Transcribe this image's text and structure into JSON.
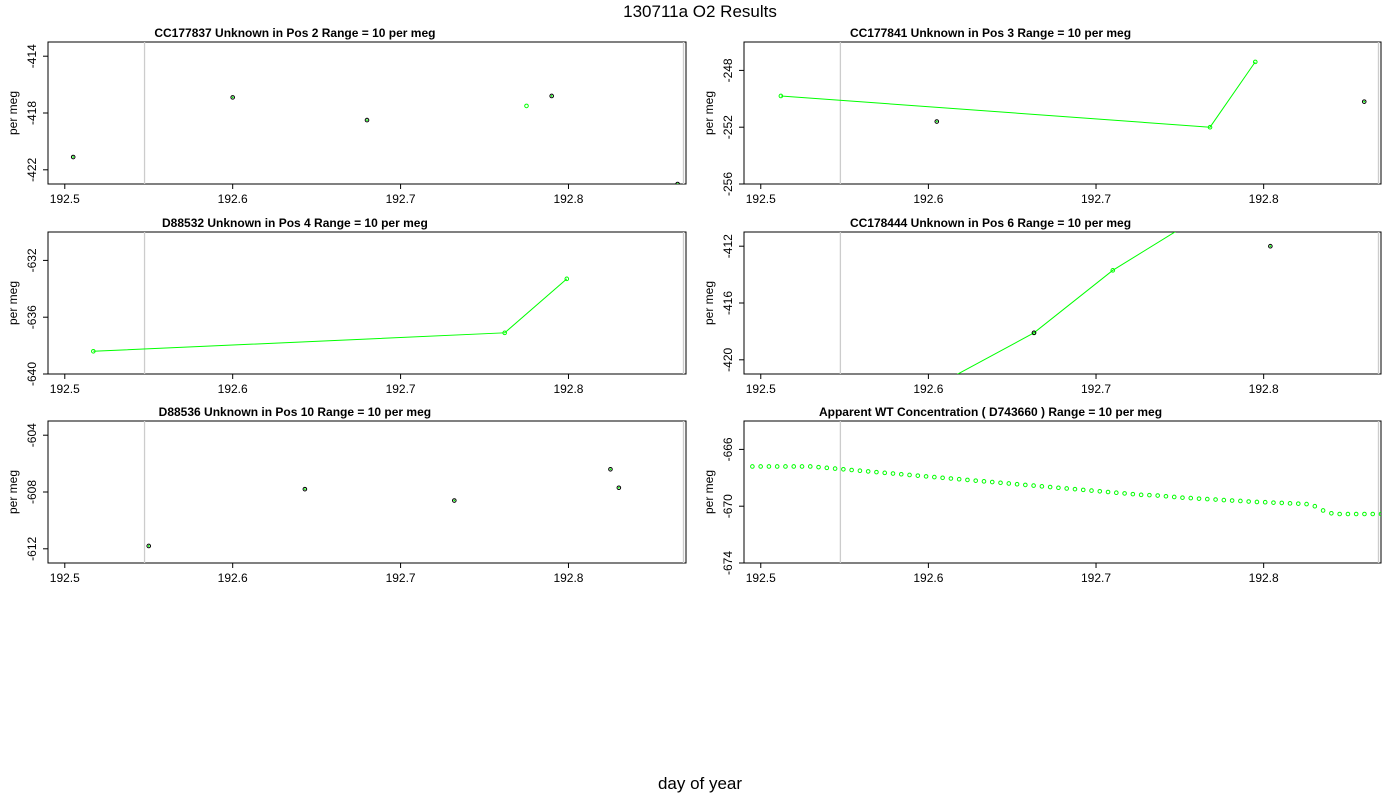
{
  "title": "130711a  O2 Results",
  "xlabel": "day of year",
  "ylabel": "per meg",
  "colors": {
    "primary": "#00ff00",
    "outline": "#000000",
    "vline": "#cccccc"
  },
  "chart_data": [
    {
      "type": "scatter",
      "title": "CC177837    Unknown in Pos 2          Range = 10 per meg",
      "xlim": [
        192.49,
        192.87
      ],
      "ylim": [
        -423,
        -413
      ],
      "xticks": [
        192.5,
        192.6,
        192.7,
        192.8
      ],
      "yticks": [
        -414,
        -418,
        -422
      ],
      "vlines": [
        192.5475,
        192.8685
      ],
      "series": [
        {
          "style": "black",
          "x": [
            192.505,
            192.6,
            192.68,
            192.79,
            192.865
          ],
          "y": [
            -421.1,
            -416.9,
            -418.5,
            -416.8,
            -423.0
          ]
        },
        {
          "style": "green",
          "x": [
            192.775
          ],
          "y": [
            -417.5
          ]
        }
      ]
    },
    {
      "type": "line",
      "title": "CC177841    Unknown in Pos 3          Range = 10 per meg",
      "xlim": [
        192.49,
        192.87
      ],
      "ylim": [
        -256,
        -246
      ],
      "xticks": [
        192.5,
        192.6,
        192.7,
        192.8
      ],
      "yticks": [
        -248,
        -252,
        -256
      ],
      "vlines": [
        192.5475,
        192.8685
      ],
      "series": [
        {
          "style": "black",
          "x": [
            192.605,
            192.86
          ],
          "y": [
            -251.6,
            -250.2
          ]
        },
        {
          "style": "green-line",
          "x": [
            192.512,
            192.768,
            192.795
          ],
          "y": [
            -249.8,
            -252.0,
            -247.4
          ]
        }
      ]
    },
    {
      "type": "line",
      "title": "D88532    Unknown in Pos 4          Range = 10 per meg",
      "xlim": [
        192.49,
        192.87
      ],
      "ylim": [
        -640,
        -630
      ],
      "xticks": [
        192.5,
        192.6,
        192.7,
        192.8
      ],
      "yticks": [
        -632,
        -636,
        -640
      ],
      "vlines": [
        192.5475,
        192.8685
      ],
      "series": [
        {
          "style": "green-line",
          "x": [
            192.517,
            192.762,
            192.799
          ],
          "y": [
            -638.4,
            -637.1,
            -633.3
          ]
        }
      ]
    },
    {
      "type": "line",
      "title": "CC178444    Unknown in Pos 6          Range = 10 per meg",
      "xlim": [
        192.49,
        192.87
      ],
      "ylim": [
        -421,
        -411
      ],
      "xticks": [
        192.5,
        192.6,
        192.7,
        192.8
      ],
      "yticks": [
        -412,
        -416,
        -420
      ],
      "vlines": [
        192.5475,
        192.8685
      ],
      "series": [
        {
          "style": "green-line",
          "x": [
            192.5,
            192.663,
            192.71,
            192.78
          ],
          "y": [
            -428.5,
            -418.1,
            -413.7,
            -408.6
          ]
        },
        {
          "style": "black",
          "x": [
            192.663,
            192.804
          ],
          "y": [
            -418.1,
            -412.0
          ]
        }
      ]
    },
    {
      "type": "scatter",
      "title": "D88536    Unknown in Pos 10          Range = 10 per meg",
      "xlim": [
        192.49,
        192.87
      ],
      "ylim": [
        -613,
        -603
      ],
      "xticks": [
        192.5,
        192.6,
        192.7,
        192.8
      ],
      "yticks": [
        -604,
        -608,
        -612
      ],
      "vlines": [
        192.5475,
        192.8685
      ],
      "series": [
        {
          "style": "black",
          "x": [
            192.55,
            192.643,
            192.732,
            192.825,
            192.83
          ],
          "y": [
            -611.8,
            -607.8,
            -608.6,
            -606.4,
            -607.7
          ]
        }
      ]
    },
    {
      "type": "scatter",
      "title": "Apparent WT Concentration ( D743660 )          Range = 10 per meg",
      "xlim": [
        192.49,
        192.87
      ],
      "ylim": [
        -674,
        -664
      ],
      "xticks": [
        192.5,
        192.6,
        192.7,
        192.8
      ],
      "yticks": [
        -666,
        -670,
        -674
      ],
      "vlines": [
        192.5475,
        192.8685
      ],
      "series": [
        {
          "style": "green-dense",
          "x_start": 192.495,
          "x_end": 192.87,
          "count": 77,
          "y": [
            -667.2,
            -667.2,
            -667.2,
            -667.2,
            -667.2,
            -667.2,
            -667.2,
            -667.2,
            -667.25,
            -667.3,
            -667.35,
            -667.4,
            -667.45,
            -667.5,
            -667.55,
            -667.6,
            -667.65,
            -667.7,
            -667.75,
            -667.8,
            -667.85,
            -667.9,
            -667.95,
            -668.0,
            -668.05,
            -668.1,
            -668.15,
            -668.2,
            -668.25,
            -668.3,
            -668.35,
            -668.4,
            -668.45,
            -668.5,
            -668.55,
            -668.6,
            -668.65,
            -668.7,
            -668.75,
            -668.8,
            -668.85,
            -668.9,
            -668.95,
            -669.0,
            -669.05,
            -669.1,
            -669.15,
            -669.2,
            -669.22,
            -669.25,
            -669.3,
            -669.35,
            -669.4,
            -669.43,
            -669.47,
            -669.5,
            -669.53,
            -669.57,
            -669.6,
            -669.63,
            -669.67,
            -669.7,
            -669.72,
            -669.75,
            -669.77,
            -669.8,
            -669.82,
            -669.85,
            -670.0,
            -670.3,
            -670.5,
            -670.55,
            -670.55,
            -670.55,
            -670.55,
            -670.55,
            -670.55
          ]
        }
      ]
    }
  ]
}
